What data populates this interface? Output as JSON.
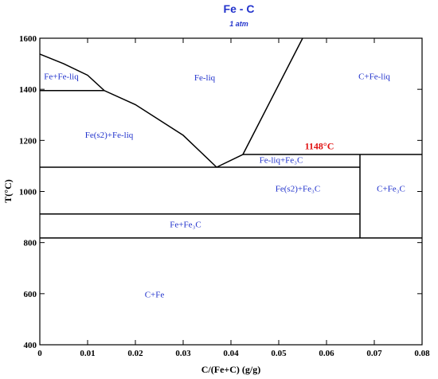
{
  "chart_data": {
    "type": "phase-diagram",
    "title": "Fe - C",
    "subtitle": "1 atm",
    "xlabel": "C/(Fe+C) (g/g)",
    "ylabel": "T(°C)",
    "xlim": [
      0,
      0.08
    ],
    "ylim": [
      400,
      1600
    ],
    "x_ticks": [
      0,
      0.01,
      0.02,
      0.03,
      0.04,
      0.05,
      0.06,
      0.07,
      0.08
    ],
    "x_tick_labels": [
      "0",
      "0.01",
      "0.02",
      "0.03",
      "0.04",
      "0.05",
      "0.06",
      "0.07",
      "0.08"
    ],
    "y_ticks": [
      400,
      600,
      800,
      1000,
      1200,
      1400,
      1600
    ],
    "y_tick_labels": [
      "400",
      "600",
      "800",
      "1000",
      "1200",
      "1400",
      "1600"
    ],
    "grid": false,
    "lines": [
      {
        "name": "liquidus-left",
        "points": [
          [
            0,
            1538
          ],
          [
            0.005,
            1500
          ],
          [
            0.01,
            1455
          ],
          [
            0.0135,
            1395
          ],
          [
            0.02,
            1340
          ],
          [
            0.03,
            1220
          ],
          [
            0.037,
            1095
          ]
        ]
      },
      {
        "name": "liquidus-right",
        "points": [
          [
            0.037,
            1095
          ],
          [
            0.0425,
            1145
          ],
          [
            0.055,
            1600
          ]
        ]
      },
      {
        "name": "peritectic-line",
        "points": [
          [
            0,
            1395
          ],
          [
            0.0135,
            1395
          ]
        ]
      },
      {
        "name": "eutectic-line",
        "points": [
          [
            0,
            1095
          ],
          [
            0.067,
            1095
          ]
        ]
      },
      {
        "name": "upper-horizontal-line",
        "points": [
          [
            0.0425,
            1145
          ],
          [
            0.08,
            1145
          ]
        ]
      },
      {
        "name": "cementite-boundary",
        "points": [
          [
            0.067,
            1145
          ],
          [
            0.067,
            818
          ]
        ]
      },
      {
        "name": "middle-horizontal-line",
        "points": [
          [
            0,
            912
          ],
          [
            0.067,
            912
          ]
        ]
      },
      {
        "name": "eutectoid-line",
        "points": [
          [
            0,
            818
          ],
          [
            0.08,
            818
          ]
        ]
      }
    ],
    "regions": [
      {
        "label": "Fe+Fe-liq",
        "x": 0.0045,
        "y": 1440
      },
      {
        "label": "Fe-liq",
        "x": 0.0345,
        "y": 1435
      },
      {
        "label": "C+Fe-liq",
        "x": 0.07,
        "y": 1440
      },
      {
        "label": "Fe(s2)+Fe-liq",
        "x": 0.0145,
        "y": 1210
      },
      {
        "label": "Fe-liq+Fe₃C",
        "x": 0.0505,
        "y": 1112
      },
      {
        "label": "Fe(s2)+Fe₃C",
        "x": 0.054,
        "y": 1000
      },
      {
        "label": "C+Fe₃C",
        "x": 0.0735,
        "y": 1000
      },
      {
        "label": "Fe+Fe₃C",
        "x": 0.0305,
        "y": 860
      },
      {
        "label": "C+Fe",
        "x": 0.024,
        "y": 585
      }
    ],
    "annotations": [
      {
        "label": "1148°C",
        "x": 0.0585,
        "y": 1165,
        "color": "#e01010"
      }
    ],
    "colors": {
      "lines": "#000000",
      "region_labels": "#2233cc",
      "annotation": "#e01010",
      "title": "#2233cc"
    }
  }
}
